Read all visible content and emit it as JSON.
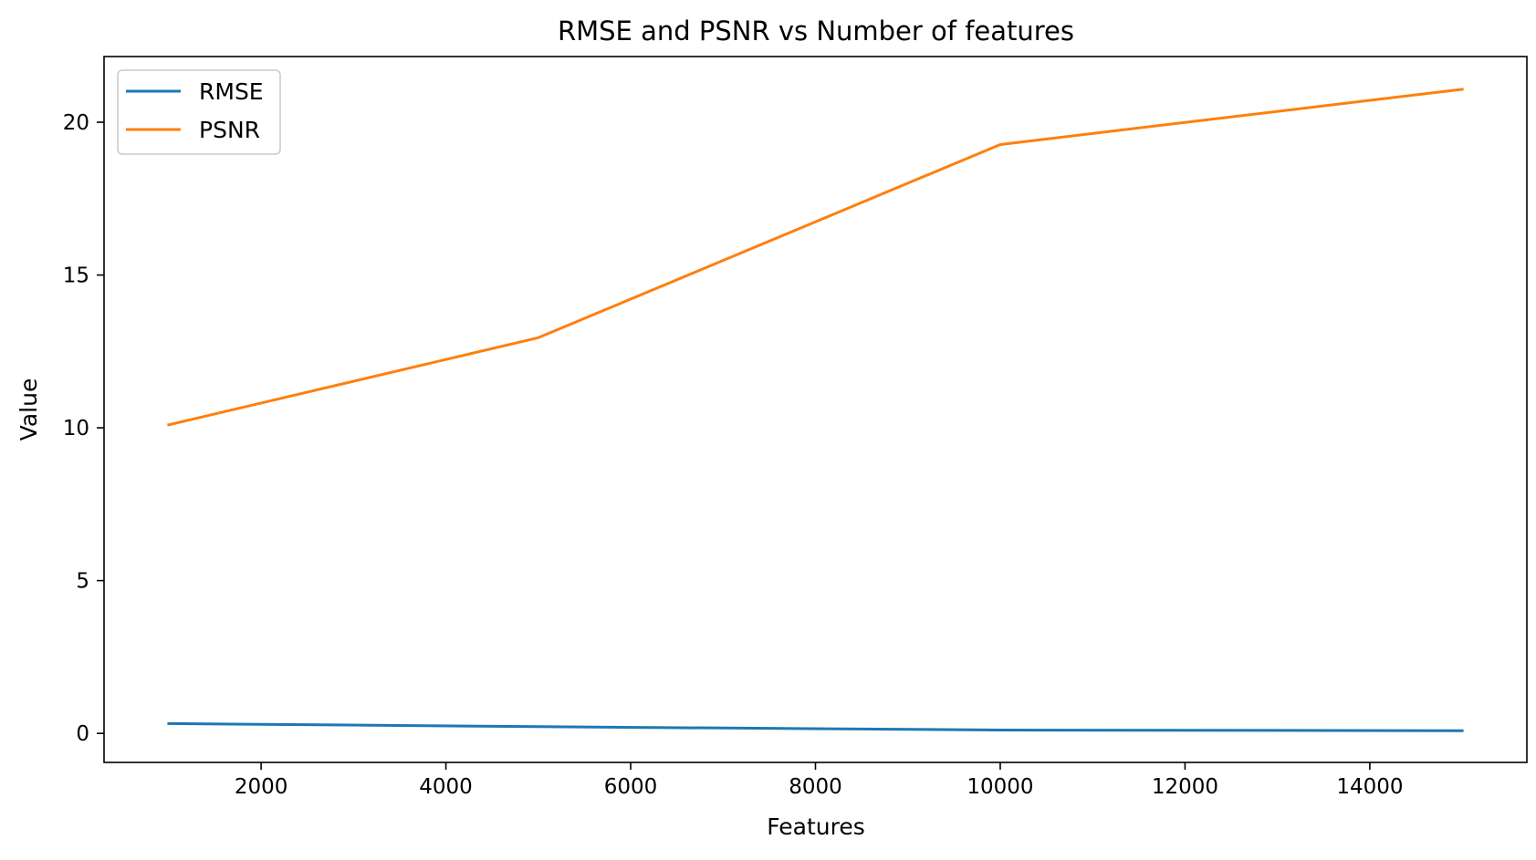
{
  "chart_data": {
    "type": "line",
    "title": "RMSE and PSNR vs Number of features",
    "xlabel": "Features",
    "ylabel": "Value",
    "x": [
      1000,
      5000,
      10000,
      15000
    ],
    "series": [
      {
        "name": "RMSE",
        "color": "#1f77b4",
        "values": [
          0.32,
          0.22,
          0.11,
          0.09
        ]
      },
      {
        "name": "PSNR",
        "color": "#ff7f0e",
        "values": [
          10.1,
          12.95,
          19.27,
          21.08
        ]
      }
    ],
    "xlim": [
      300,
      15700
    ],
    "ylim": [
      -0.95,
      22.15
    ],
    "xticks": [
      2000,
      4000,
      6000,
      8000,
      10000,
      12000,
      14000
    ],
    "yticks": [
      0,
      5,
      10,
      15,
      20
    ],
    "legend_position": "upper-left",
    "grid": false
  }
}
